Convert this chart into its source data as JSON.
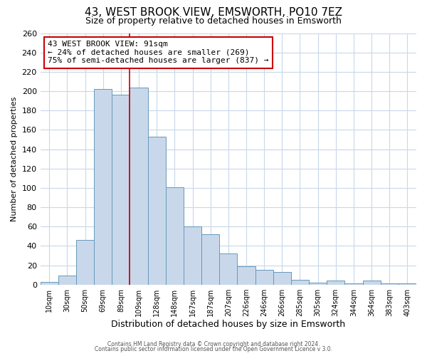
{
  "title": "43, WEST BROOK VIEW, EMSWORTH, PO10 7EZ",
  "subtitle": "Size of property relative to detached houses in Emsworth",
  "xlabel": "Distribution of detached houses by size in Emsworth",
  "ylabel": "Number of detached properties",
  "bar_labels": [
    "10sqm",
    "30sqm",
    "50sqm",
    "69sqm",
    "89sqm",
    "109sqm",
    "128sqm",
    "148sqm",
    "167sqm",
    "187sqm",
    "207sqm",
    "226sqm",
    "246sqm",
    "266sqm",
    "285sqm",
    "305sqm",
    "324sqm",
    "344sqm",
    "364sqm",
    "383sqm",
    "403sqm"
  ],
  "bar_values": [
    3,
    9,
    46,
    202,
    196,
    204,
    153,
    101,
    60,
    52,
    32,
    19,
    15,
    13,
    5,
    2,
    4,
    1,
    4,
    1,
    1
  ],
  "bar_color": "#c8d8ea",
  "bar_edge_color": "#6699bb",
  "vline_x_index": 4.5,
  "vline_color": "#cc0000",
  "annotation_title": "43 WEST BROOK VIEW: 91sqm",
  "annotation_line1": "← 24% of detached houses are smaller (269)",
  "annotation_line2": "75% of semi-detached houses are larger (837) →",
  "annotation_box_color": "#cc0000",
  "ylim": [
    0,
    260
  ],
  "yticks": [
    0,
    20,
    40,
    60,
    80,
    100,
    120,
    140,
    160,
    180,
    200,
    220,
    240,
    260
  ],
  "footer_line1": "Contains HM Land Registry data © Crown copyright and database right 2024.",
  "footer_line2": "Contains public sector information licensed under the Open Government Licence v 3.0.",
  "bg_color": "#ffffff",
  "grid_color": "#c8d8ea"
}
